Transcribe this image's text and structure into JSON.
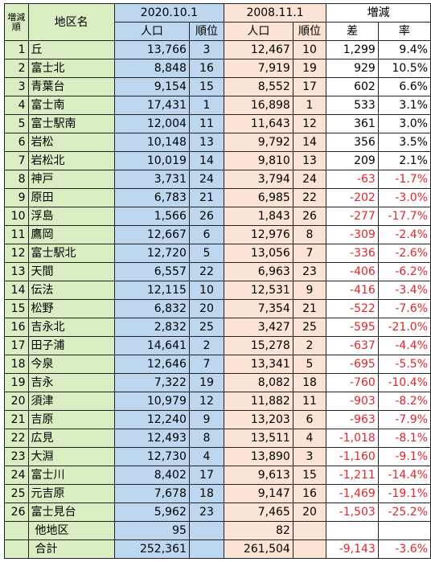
{
  "header": {
    "rank_col": "増減順",
    "area_col": "地区名",
    "year_a": "2020.10.1",
    "year_b": "2008.11.1",
    "change": "増減",
    "pop": "人口",
    "order": "順位",
    "diff": "差",
    "rate": "率"
  },
  "rows": [
    {
      "rank": "1",
      "area": "丘",
      "pop_a": "13,766",
      "ord_a": "3",
      "pop_b": "12,467",
      "ord_b": "10",
      "diff": "1,299",
      "rate": "9.4%"
    },
    {
      "rank": "2",
      "area": "富士北",
      "pop_a": "8,848",
      "ord_a": "16",
      "pop_b": "7,919",
      "ord_b": "19",
      "diff": "929",
      "rate": "10.5%"
    },
    {
      "rank": "3",
      "area": "青葉台",
      "pop_a": "9,154",
      "ord_a": "15",
      "pop_b": "8,552",
      "ord_b": "17",
      "diff": "602",
      "rate": "6.6%"
    },
    {
      "rank": "4",
      "area": "富士南",
      "pop_a": "17,431",
      "ord_a": "1",
      "pop_b": "16,898",
      "ord_b": "1",
      "diff": "533",
      "rate": "3.1%"
    },
    {
      "rank": "5",
      "area": "富士駅南",
      "pop_a": "12,004",
      "ord_a": "11",
      "pop_b": "11,643",
      "ord_b": "12",
      "diff": "361",
      "rate": "3.0%"
    },
    {
      "rank": "6",
      "area": "岩松",
      "pop_a": "10,148",
      "ord_a": "13",
      "pop_b": "9,792",
      "ord_b": "14",
      "diff": "356",
      "rate": "3.5%"
    },
    {
      "rank": "7",
      "area": "岩松北",
      "pop_a": "10,019",
      "ord_a": "14",
      "pop_b": "9,810",
      "ord_b": "13",
      "diff": "209",
      "rate": "2.1%"
    },
    {
      "rank": "8",
      "area": "神戸",
      "pop_a": "3,731",
      "ord_a": "24",
      "pop_b": "3,794",
      "ord_b": "24",
      "diff": "-63",
      "rate": "-1.7%"
    },
    {
      "rank": "9",
      "area": "原田",
      "pop_a": "6,783",
      "ord_a": "21",
      "pop_b": "6,985",
      "ord_b": "22",
      "diff": "-202",
      "rate": "-3.0%"
    },
    {
      "rank": "10",
      "area": "浮島",
      "pop_a": "1,566",
      "ord_a": "26",
      "pop_b": "1,843",
      "ord_b": "26",
      "diff": "-277",
      "rate": "-17.7%"
    },
    {
      "rank": "11",
      "area": "鷹岡",
      "pop_a": "12,667",
      "ord_a": "6",
      "pop_b": "12,976",
      "ord_b": "8",
      "diff": "-309",
      "rate": "-2.4%"
    },
    {
      "rank": "12",
      "area": "富士駅北",
      "pop_a": "12,720",
      "ord_a": "5",
      "pop_b": "13,056",
      "ord_b": "7",
      "diff": "-336",
      "rate": "-2.6%"
    },
    {
      "rank": "13",
      "area": "天間",
      "pop_a": "6,557",
      "ord_a": "22",
      "pop_b": "6,963",
      "ord_b": "23",
      "diff": "-406",
      "rate": "-6.2%"
    },
    {
      "rank": "14",
      "area": "伝法",
      "pop_a": "12,115",
      "ord_a": "10",
      "pop_b": "12,531",
      "ord_b": "9",
      "diff": "-416",
      "rate": "-3.4%"
    },
    {
      "rank": "15",
      "area": "松野",
      "pop_a": "6,832",
      "ord_a": "20",
      "pop_b": "7,354",
      "ord_b": "21",
      "diff": "-522",
      "rate": "-7.6%"
    },
    {
      "rank": "16",
      "area": "吉永北",
      "pop_a": "2,832",
      "ord_a": "25",
      "pop_b": "3,427",
      "ord_b": "25",
      "diff": "-595",
      "rate": "-21.0%"
    },
    {
      "rank": "17",
      "area": "田子浦",
      "pop_a": "14,641",
      "ord_a": "2",
      "pop_b": "15,278",
      "ord_b": "2",
      "diff": "-637",
      "rate": "-4.4%"
    },
    {
      "rank": "18",
      "area": "今泉",
      "pop_a": "12,646",
      "ord_a": "7",
      "pop_b": "13,341",
      "ord_b": "5",
      "diff": "-695",
      "rate": "-5.5%"
    },
    {
      "rank": "19",
      "area": "吉永",
      "pop_a": "7,322",
      "ord_a": "19",
      "pop_b": "8,082",
      "ord_b": "18",
      "diff": "-760",
      "rate": "-10.4%"
    },
    {
      "rank": "20",
      "area": "須津",
      "pop_a": "10,979",
      "ord_a": "12",
      "pop_b": "11,882",
      "ord_b": "11",
      "diff": "-903",
      "rate": "-8.2%"
    },
    {
      "rank": "21",
      "area": "吉原",
      "pop_a": "12,240",
      "ord_a": "9",
      "pop_b": "13,203",
      "ord_b": "6",
      "diff": "-963",
      "rate": "-7.9%"
    },
    {
      "rank": "22",
      "area": "広見",
      "pop_a": "12,493",
      "ord_a": "8",
      "pop_b": "13,511",
      "ord_b": "4",
      "diff": "-1,018",
      "rate": "-8.1%"
    },
    {
      "rank": "23",
      "area": "大淵",
      "pop_a": "12,730",
      "ord_a": "4",
      "pop_b": "13,890",
      "ord_b": "3",
      "diff": "-1,160",
      "rate": "-9.1%"
    },
    {
      "rank": "24",
      "area": "富士川",
      "pop_a": "8,402",
      "ord_a": "17",
      "pop_b": "9,613",
      "ord_b": "15",
      "diff": "-1,211",
      "rate": "-14.4%"
    },
    {
      "rank": "25",
      "area": "元吉原",
      "pop_a": "7,678",
      "ord_a": "18",
      "pop_b": "9,147",
      "ord_b": "16",
      "diff": "-1,469",
      "rate": "-19.1%"
    },
    {
      "rank": "26",
      "area": "富士見台",
      "pop_a": "5,962",
      "ord_a": "23",
      "pop_b": "7,465",
      "ord_b": "20",
      "diff": "-1,503",
      "rate": "-25.2%"
    }
  ],
  "other": {
    "area": "他地区",
    "pop_a": "95",
    "pop_b": "82"
  },
  "total": {
    "area": "合計",
    "pop_a": "252,361",
    "pop_b": "261,504",
    "diff": "-9,143",
    "rate": "-3.6%"
  }
}
